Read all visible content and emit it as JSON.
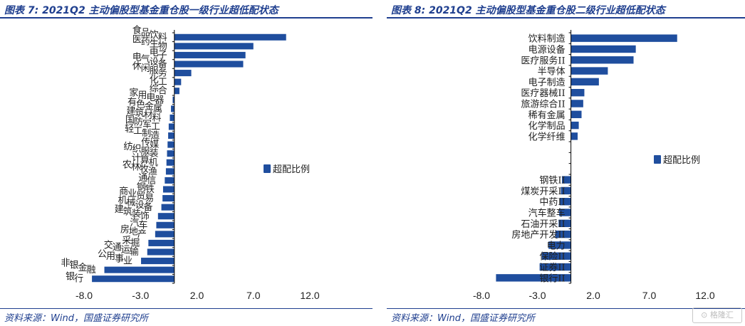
{
  "colors": {
    "bar": "#1f4e9e",
    "title": "#1f3f8f",
    "axis": "#000000"
  },
  "watermark": "格隆汇",
  "chart_data": [
    {
      "type": "bar",
      "orientation": "horizontal",
      "title": "图表 7:  2021Q2 主动偏股型基金重仓股一级行业超低配状态",
      "source": "资料来源：Wind，国盛证券研究所",
      "legend": {
        "label": "超配比例",
        "position": "right"
      },
      "xlim": [
        -8,
        12
      ],
      "xticks": [
        "-8.0",
        "-3.0",
        "2.0",
        "7.0",
        "12.0"
      ],
      "categories": [
        "食品饮料",
        "医药生物",
        "电子",
        "电气设备",
        "休闲服务",
        "化工",
        "综合",
        "家用电器",
        "有色金属",
        "建筑材料",
        "国防军工",
        "轻工制造",
        "传媒",
        "纺织服装",
        "计算机",
        "农林牧渔",
        "通信",
        "钢铁",
        "商业贸易",
        "机械设备",
        "建筑装饰",
        "汽车",
        "房地产",
        "采掘",
        "交通运输",
        "公用事业",
        "非银金融",
        "银行"
      ],
      "series": [
        {
          "values": [
            9.9,
            7.0,
            6.3,
            6.1,
            1.5,
            0.6,
            0.45,
            -0.15,
            -0.3,
            -0.4,
            -0.5,
            -0.55,
            -0.6,
            -0.65,
            -0.7,
            -0.75,
            -0.85,
            -1.0,
            -1.05,
            -1.15,
            -1.45,
            -1.6,
            -1.7,
            -2.3,
            -2.4,
            -2.95,
            -6.2,
            -7.3
          ]
        }
      ]
    },
    {
      "type": "bar",
      "orientation": "horizontal",
      "title": "图表 8:  2021Q2 主动偏股型基金重仓股二级行业超低配状态",
      "source": "资料来源：Wind，国盛证券研究所",
      "legend": {
        "label": "超配比例",
        "position": "right"
      },
      "xlim": [
        -8,
        12
      ],
      "xticks": [
        "-8.0",
        "-3.0",
        "2.0",
        "7.0",
        "12.0"
      ],
      "categories": [
        "饮料制造",
        "电源设备",
        "医疗服务II",
        "半导体",
        "电子制造",
        "医疗器械II",
        "旅游综合II",
        "稀有金属",
        "化学制品",
        "化学纤维",
        "",
        "",
        "",
        "钢铁II",
        "煤炭开采II",
        "中药II",
        "汽车整车",
        "石油开采II",
        "房地产开发II",
        "电力",
        "保险II",
        "证券II",
        "银行II"
      ],
      "series": [
        {
          "values": [
            9.5,
            5.8,
            5.6,
            3.3,
            2.5,
            1.2,
            1.1,
            0.95,
            0.7,
            0.6,
            null,
            null,
            null,
            -0.8,
            -0.9,
            -1.0,
            -1.05,
            -1.1,
            -1.4,
            -2.0,
            -2.6,
            -2.8,
            -6.7
          ]
        }
      ]
    }
  ]
}
